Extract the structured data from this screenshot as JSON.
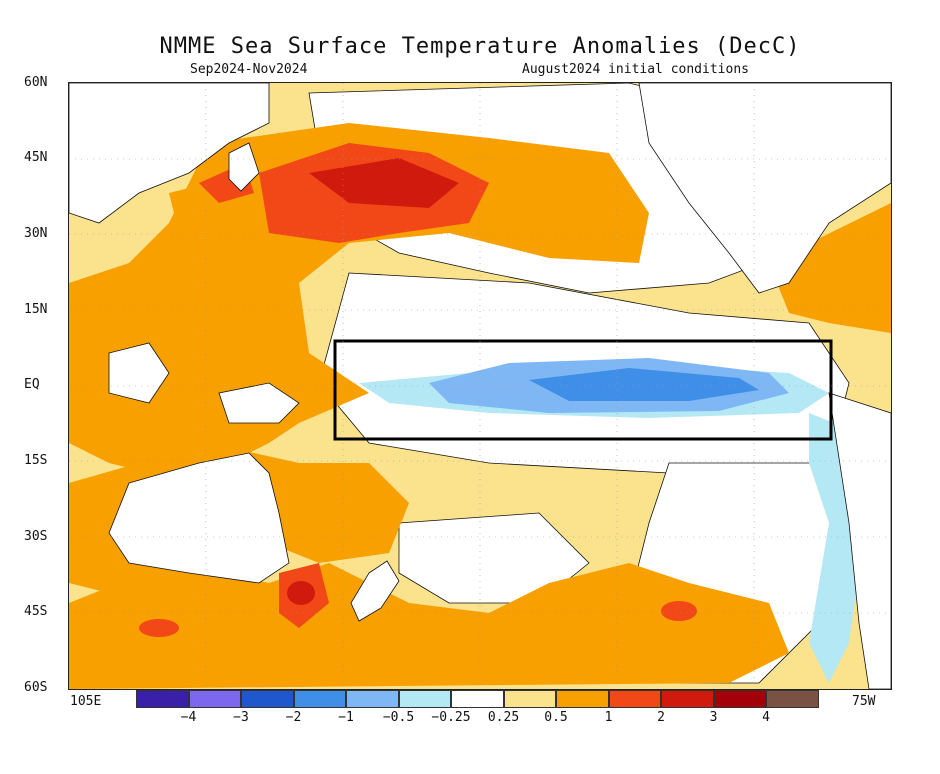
{
  "header": {
    "title": "NMME Sea Surface Temperature Anomalies (DecC)",
    "period": "Sep2024-Nov2024",
    "init": "August2024 initial conditions"
  },
  "axes": {
    "lat_labels": [
      "60N",
      "45N",
      "30N",
      "15N",
      "EQ",
      "15S",
      "30S",
      "45S",
      "60S"
    ],
    "lon_left": "105E",
    "lon_right": "75W"
  },
  "legend": {
    "colors": [
      "#3a1fa8",
      "#7b68ee",
      "#1f58cc",
      "#3f8fe8",
      "#7fb7f5",
      "#b5e8f5",
      "#ffffff",
      "#fbe28c",
      "#f7a000",
      "#f24818",
      "#d11a0e",
      "#a4000a",
      "#7a5244"
    ],
    "ticks": [
      "−4",
      "−3",
      "−2",
      "−1",
      "−0.5",
      "−0.25",
      "0.25",
      "0.5",
      "1",
      "2",
      "3",
      "4"
    ]
  },
  "map": {
    "colors": {
      "yellow": "#fbe28c",
      "orange": "#f7a000",
      "red": "#f24818",
      "darkred": "#d11a0e",
      "lightblue": "#b5e8f5",
      "blue": "#7fb7f5",
      "midblue": "#3f8fe8",
      "land": "#ffffff",
      "coast": "#111111",
      "box": "#000000"
    },
    "regions": {
      "yellow_warm": "Broad warm anomaly (0.25 to 0.5)",
      "orange_warm": "Warm anomaly (0.5 to 1)",
      "red_warm": "Strong warm anomaly (1 to 2)",
      "darkred_warm": "Very strong warm anomaly (2 to 3)",
      "lightblue_cool": "Weak cool anomaly",
      "blue_cool": "Cool anomaly (-0.5 to -1)",
      "midblue_cool": "Cooler anomaly (-1 to -2)",
      "nino_box": "Nino region box"
    }
  }
}
